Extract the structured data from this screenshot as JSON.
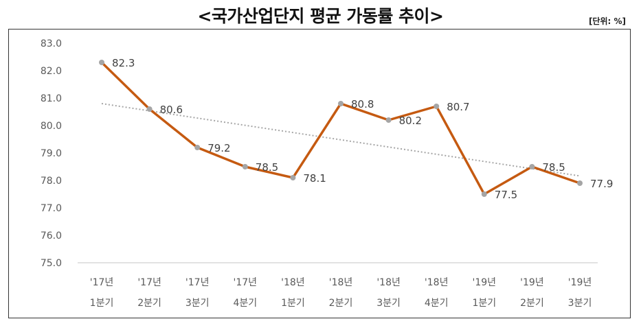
{
  "chart_data": {
    "type": "line",
    "title": "<국가산업단지 평균 가동률 추이>",
    "unit": "[단위: %]",
    "categories": [
      [
        "'17년",
        "1분기"
      ],
      [
        "'17년",
        "2분기"
      ],
      [
        "'17년",
        "3분기"
      ],
      [
        "'17년",
        "4분기"
      ],
      [
        "'18년",
        "1분기"
      ],
      [
        "'18년",
        "2분기"
      ],
      [
        "'18년",
        "3분기"
      ],
      [
        "'18년",
        "4분기"
      ],
      [
        "'19년",
        "1분기"
      ],
      [
        "'19년",
        "2분기"
      ],
      [
        "'19년",
        "3분기"
      ]
    ],
    "series": [
      {
        "values": [
          82.3,
          80.6,
          79.2,
          78.5,
          78.1,
          80.8,
          80.2,
          80.7,
          77.5,
          78.5,
          77.9
        ],
        "color": "#C55A11",
        "marker_color": "#A5A5A5"
      }
    ],
    "data_labels": [
      "82.3",
      "80.6",
      "79.2",
      "78.5",
      "78.1",
      "80.8",
      "80.2",
      "80.7",
      "77.5",
      "78.5",
      "77.9"
    ],
    "trendline": {
      "type": "linear",
      "style": "dotted",
      "color": "#A5A5A5"
    },
    "yticks": [
      "75.0",
      "76.0",
      "77.0",
      "78.0",
      "79.0",
      "80.0",
      "81.0",
      "82.0",
      "83.0"
    ],
    "ylim": [
      75.0,
      83.0
    ],
    "grid": false,
    "legend": "none"
  }
}
